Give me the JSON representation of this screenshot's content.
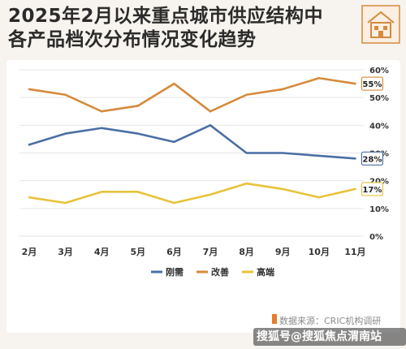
{
  "header": {
    "title_line1": "2025年2月以来重点城市供应结构中",
    "title_line2": "各产品档次分布情况变化趋势"
  },
  "footer": {
    "source": "数据来源：CRIC机构调研",
    "watermark": "搜狐号@搜狐焦点渭南站"
  },
  "colors": {
    "background": "#f7f3ef",
    "series_blue": "#4a6fa5",
    "series_orange": "#d58a3c",
    "series_yellow": "#e8c33a"
  },
  "chart_data": {
    "type": "line",
    "title": "2025年2月以来重点城市供应结构中各产品档次分布情况变化趋势",
    "categories": [
      "2月",
      "3月",
      "4月",
      "5月",
      "6月",
      "7月",
      "8月",
      "9月",
      "10月",
      "11月"
    ],
    "ylim": [
      0,
      60
    ],
    "yticks": [
      "0%",
      "10%",
      "20%",
      "30%",
      "40%",
      "50%",
      "60%"
    ],
    "grid": true,
    "legend_position": "bottom",
    "series": [
      {
        "name": "刚需",
        "color": "#4a6fa5",
        "values": [
          33,
          37,
          39,
          37,
          34,
          40,
          30,
          30,
          29,
          28
        ],
        "end_label": "28%"
      },
      {
        "name": "改善",
        "color": "#d58a3c",
        "values": [
          53,
          51,
          45,
          47,
          55,
          45,
          51,
          53,
          57,
          55
        ],
        "end_label": "55%"
      },
      {
        "name": "高端",
        "color": "#e8c33a",
        "values": [
          14,
          12,
          16,
          16,
          12,
          15,
          19,
          17,
          14,
          17
        ],
        "end_label": "17%"
      }
    ]
  }
}
